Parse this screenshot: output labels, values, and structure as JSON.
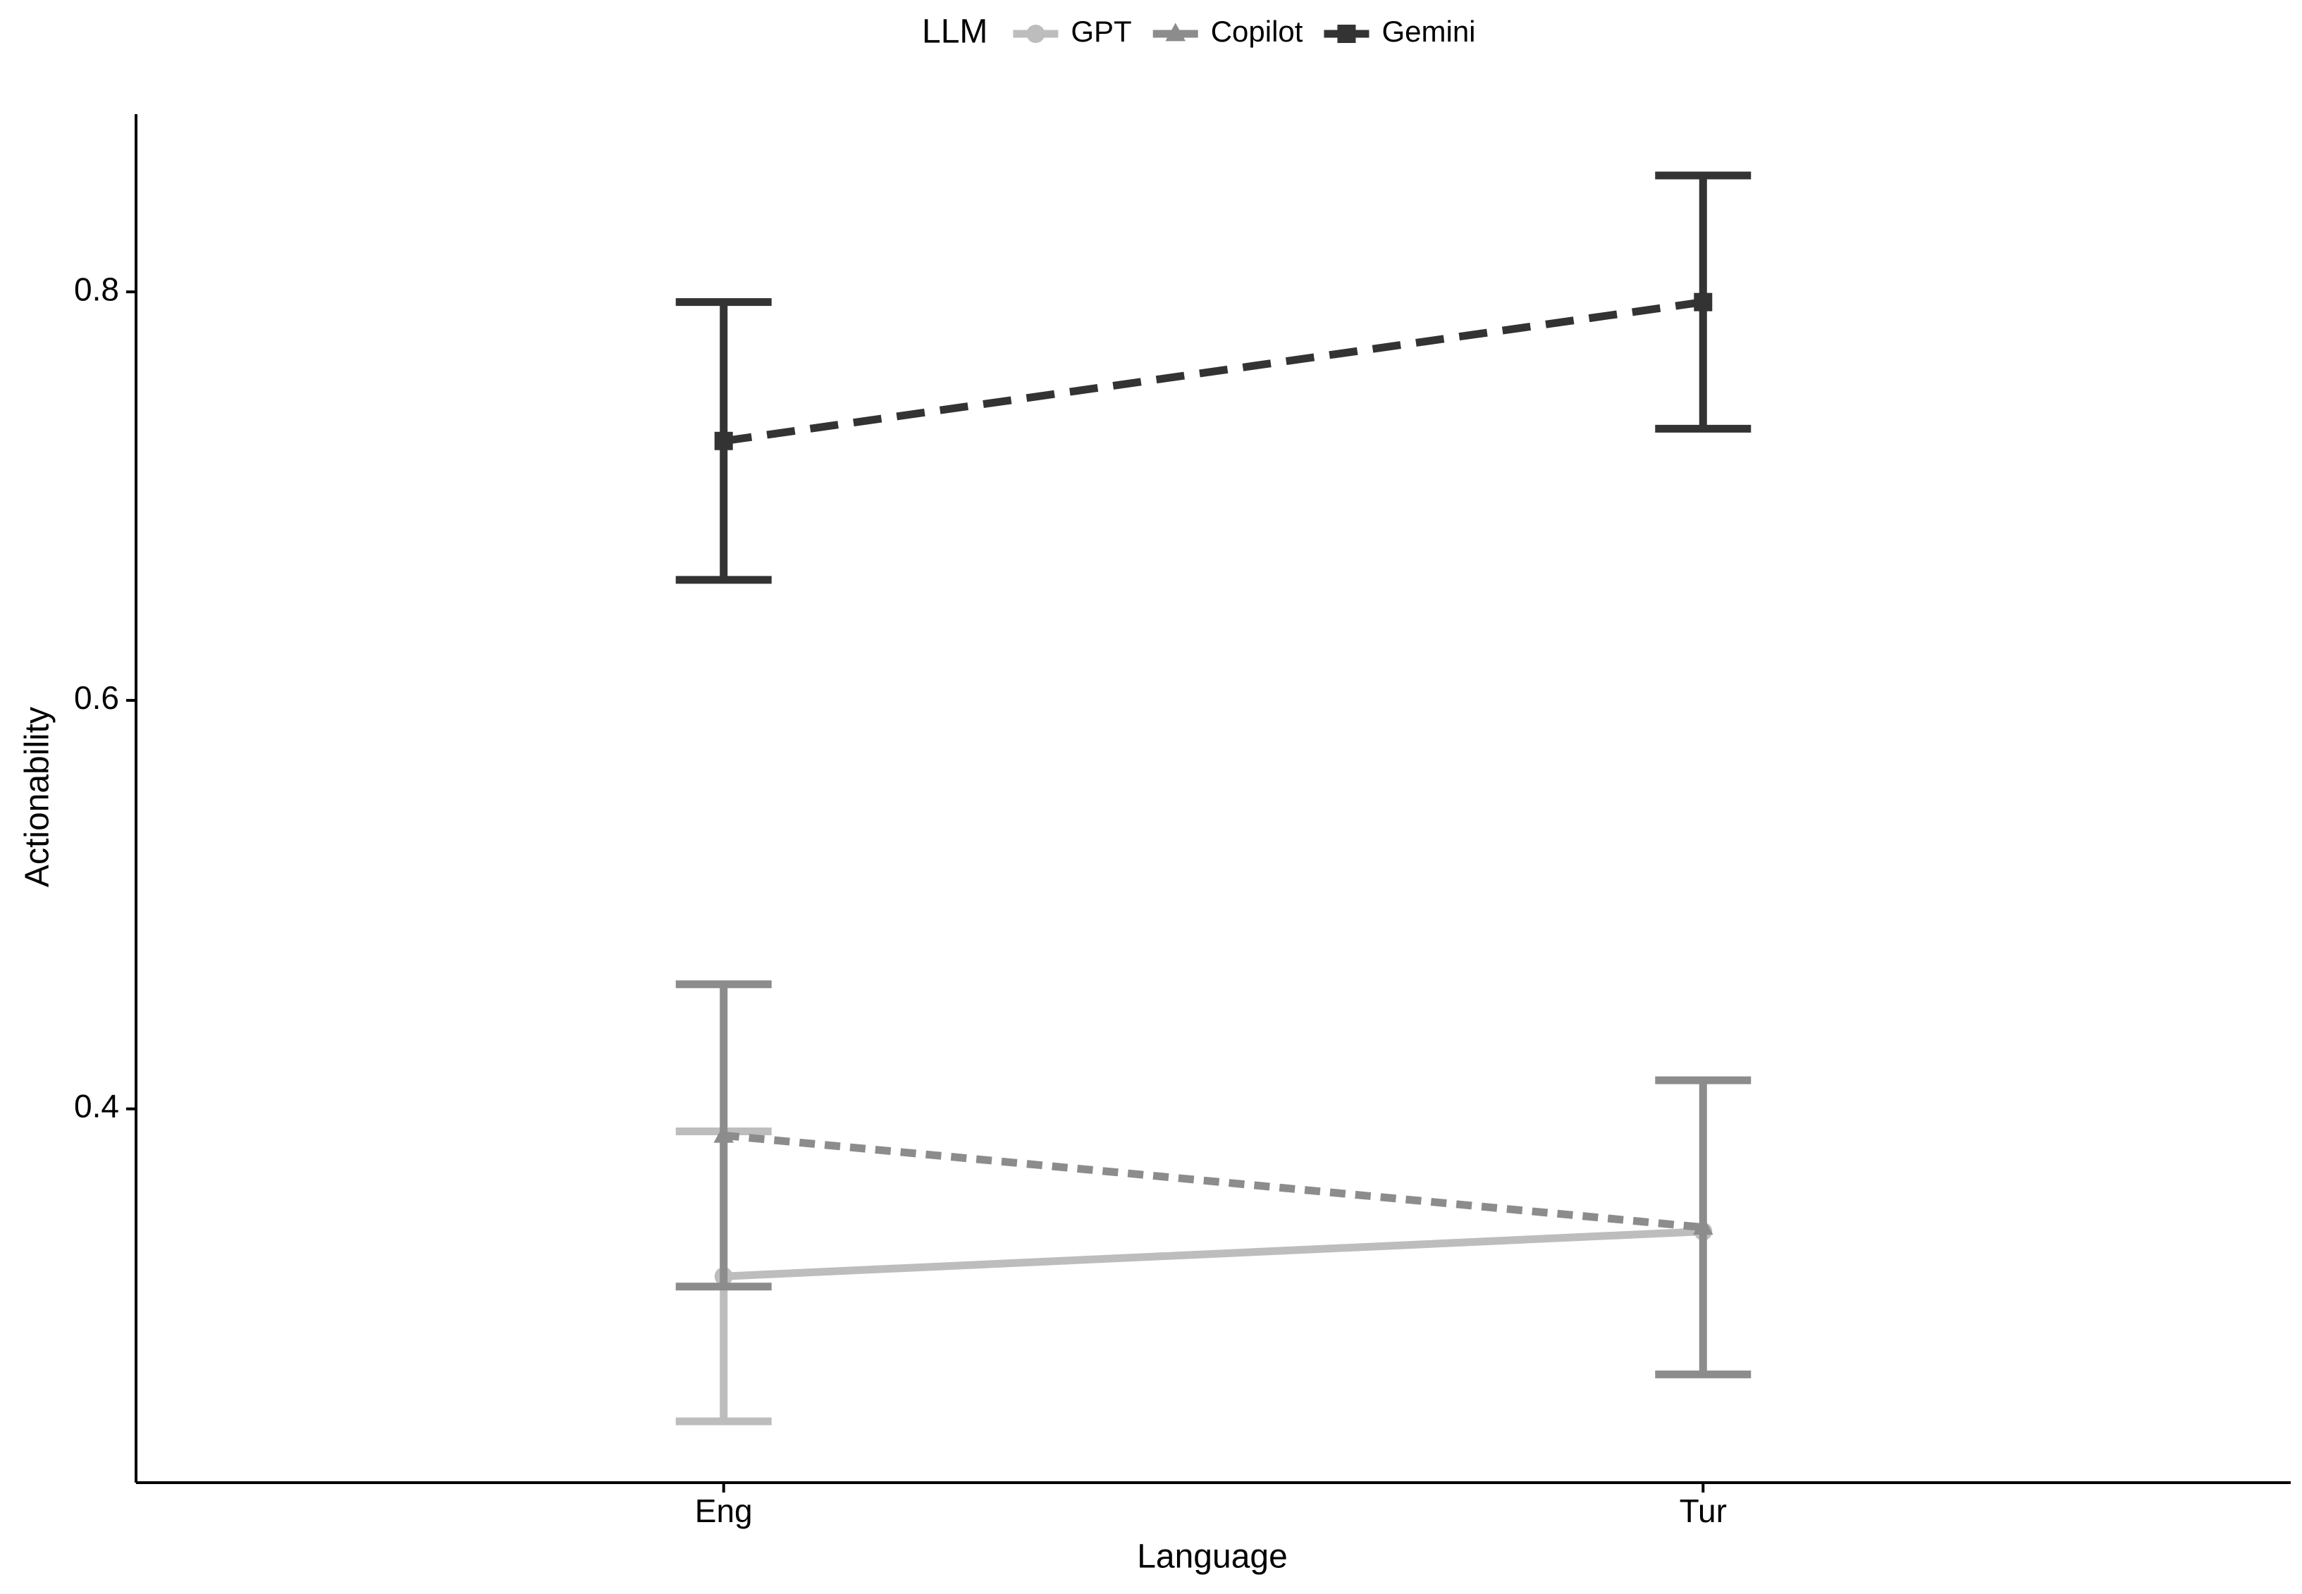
{
  "chart_data": {
    "type": "line",
    "title": null,
    "x_label": "Language",
    "y_label": "Actionability",
    "legend_title": "LLM",
    "legend_position": "top",
    "categories": [
      "Eng",
      "Tur"
    ],
    "series": [
      {
        "name": "GPT",
        "color": "#bdbdbd",
        "linetype": "solid",
        "marker": "circle",
        "values": [
          0.318,
          0.34
        ],
        "errors": [
          0.071,
          null
        ]
      },
      {
        "name": "Copilot",
        "color": "#8c8c8c",
        "linetype": "dotted",
        "marker": "triangle",
        "values": [
          0.387,
          0.342
        ],
        "errors": [
          0.074,
          0.072
        ]
      },
      {
        "name": "Gemini",
        "color": "#333333",
        "linetype": "dashed",
        "marker": "square",
        "values": [
          0.727,
          0.795
        ],
        "errors": [
          0.068,
          0.062
        ]
      }
    ],
    "ylim": [
      0.217,
      0.887
    ],
    "yticks": [
      0.4,
      0.6,
      0.8
    ],
    "grid": false
  }
}
